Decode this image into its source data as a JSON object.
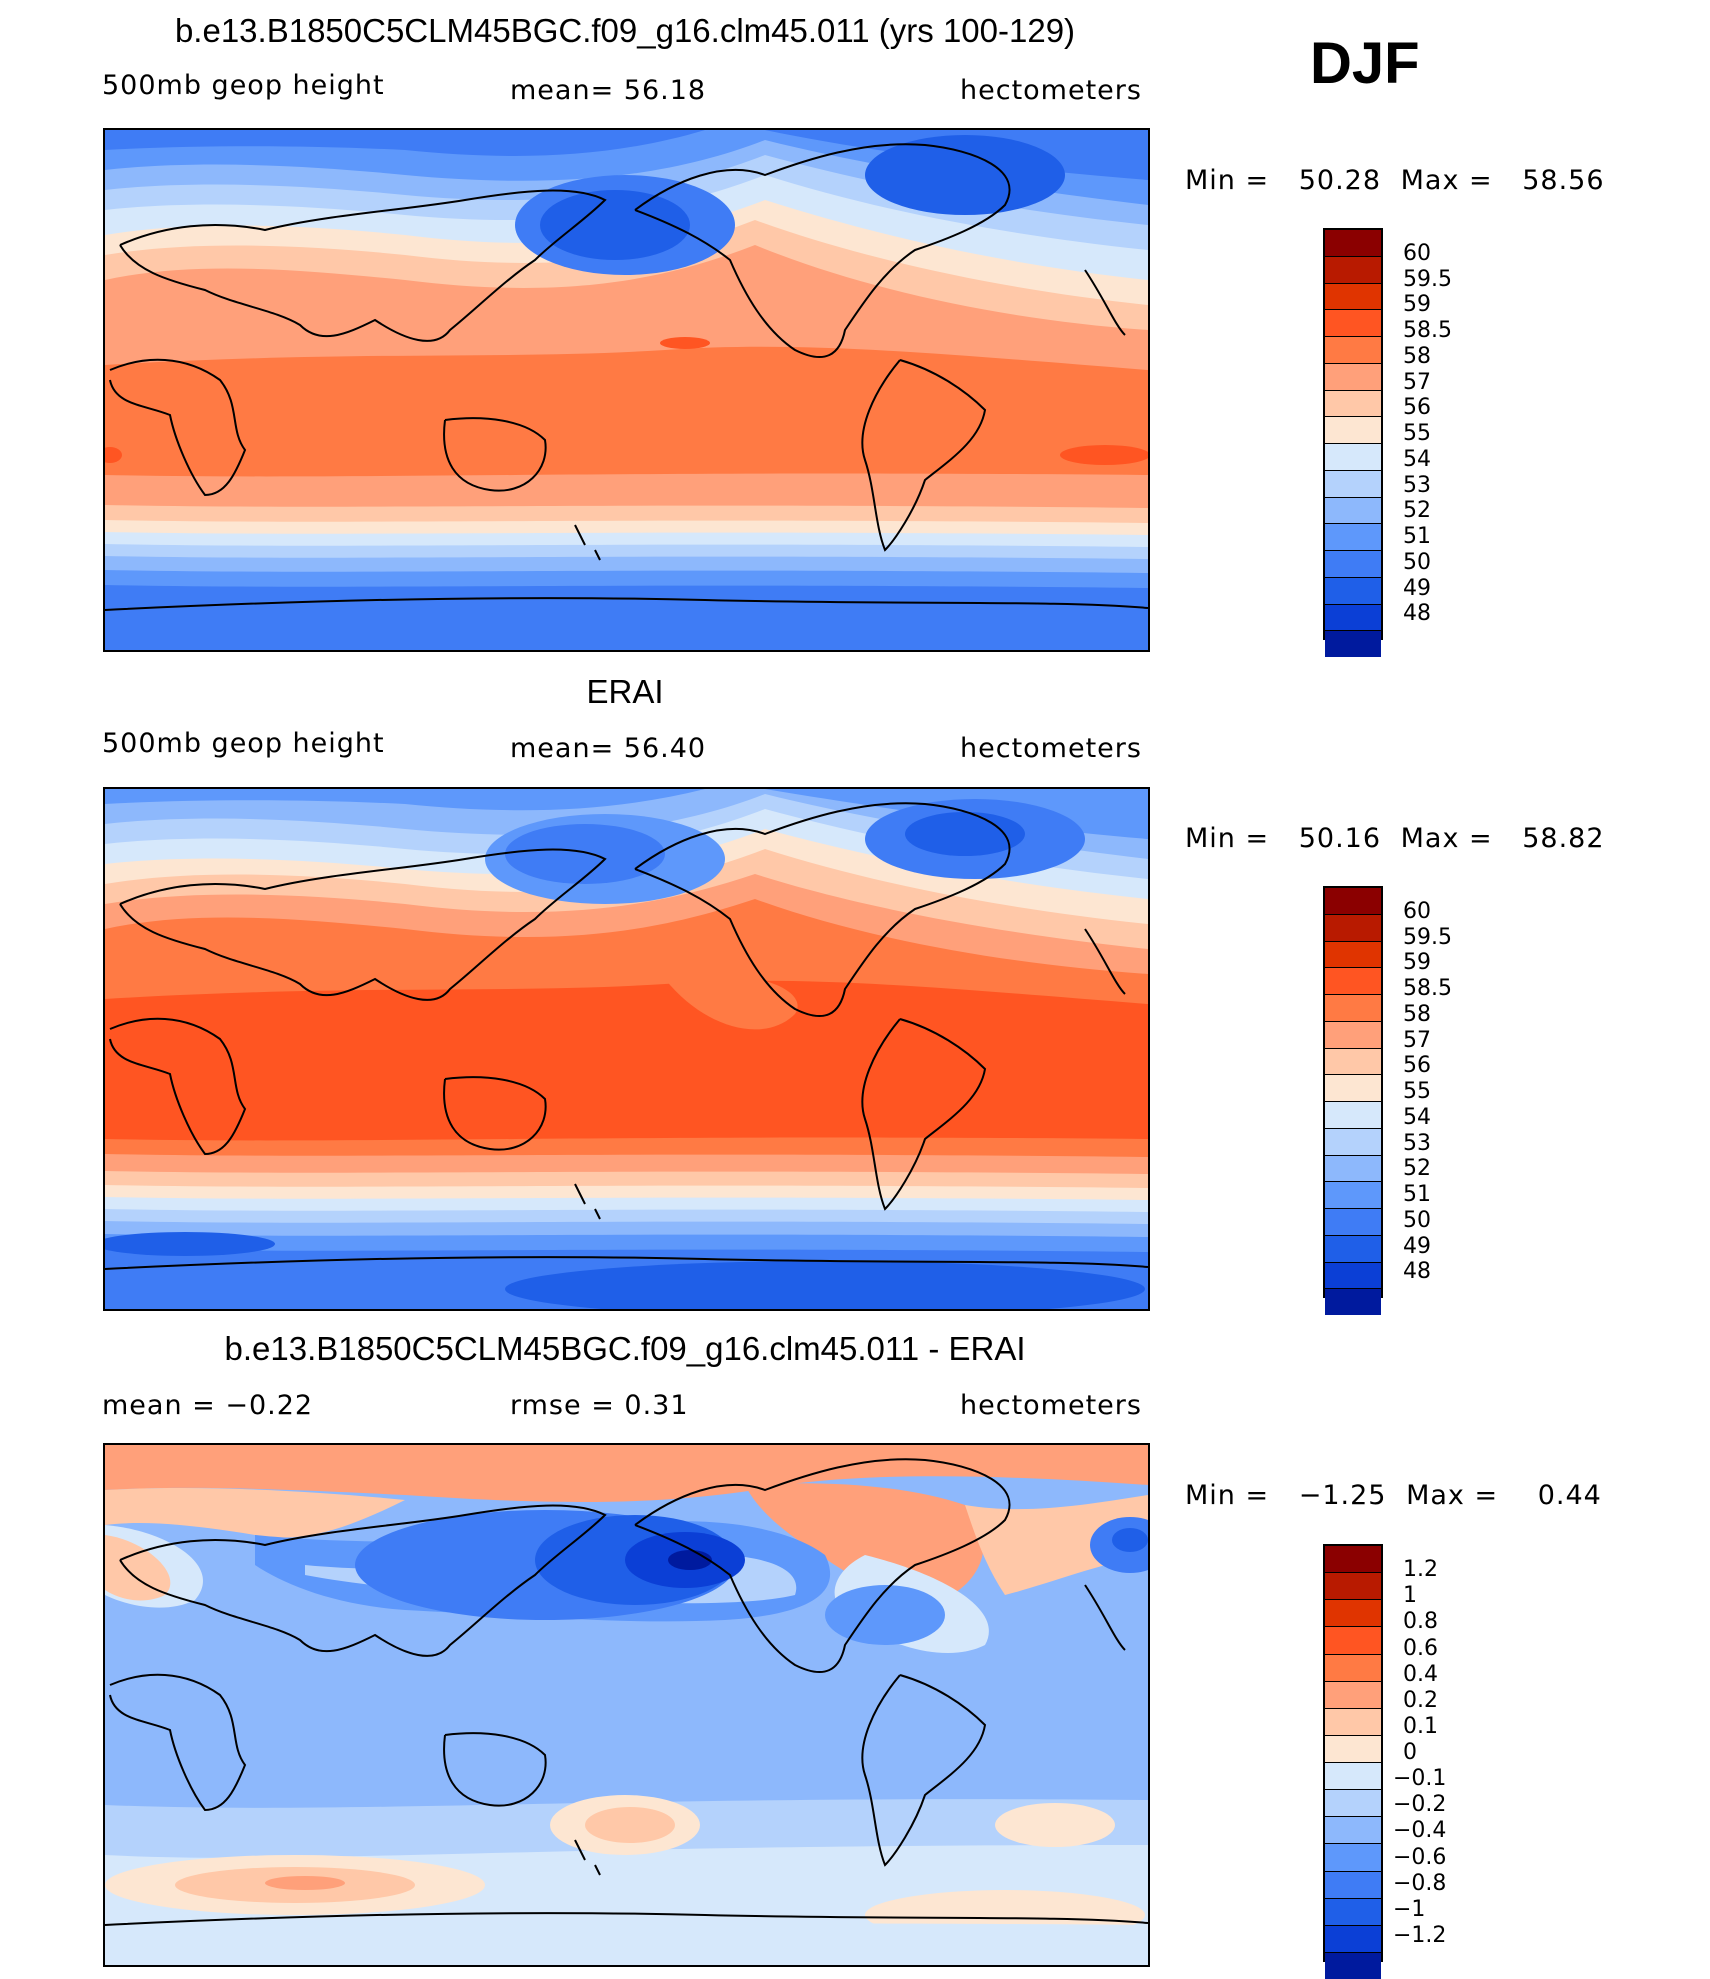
{
  "season": "DJF",
  "coast_color": "#000000",
  "panels": [
    {
      "title": "b.e13.B1850C5CLM45BGC.f09_g16.clm45.011 (yrs 100-129)",
      "left_label": "500mb geop height",
      "center_label": "mean=  56.18",
      "right_label": "hectometers",
      "min_label": "Min =",
      "min_value": "50.28",
      "max_label": "Max =",
      "max_value": "58.56",
      "colorbar_labels": [
        "60",
        "59.5",
        "59",
        "58.5",
        "58",
        "57",
        "56",
        "55",
        "54",
        "53",
        "52",
        "51",
        "50",
        "49",
        "48"
      ],
      "colors": [
        "#8b0000",
        "#b81a00",
        "#e03400",
        "#ff5522",
        "#ff7a44",
        "#ffa07a",
        "#ffc8a8",
        "#fde6d2",
        "#d6e8fb",
        "#b4d2fc",
        "#8db8fc",
        "#5e98fb",
        "#3f7cf5",
        "#1f5fe8",
        "#0b3fd6",
        "#001a9e"
      ]
    },
    {
      "title": "ERAI",
      "left_label": "500mb geop height",
      "center_label": "mean=  56.40",
      "right_label": "hectometers",
      "min_label": "Min =",
      "min_value": "50.16",
      "max_label": "Max =",
      "max_value": "58.82",
      "colorbar_labels": [
        "60",
        "59.5",
        "59",
        "58.5",
        "58",
        "57",
        "56",
        "55",
        "54",
        "53",
        "52",
        "51",
        "50",
        "49",
        "48"
      ],
      "colors": [
        "#8b0000",
        "#b81a00",
        "#e03400",
        "#ff5522",
        "#ff7a44",
        "#ffa07a",
        "#ffc8a8",
        "#fde6d2",
        "#d6e8fb",
        "#b4d2fc",
        "#8db8fc",
        "#5e98fb",
        "#3f7cf5",
        "#1f5fe8",
        "#0b3fd6",
        "#001a9e"
      ]
    },
    {
      "title": "b.e13.B1850C5CLM45BGC.f09_g16.clm45.011 - ERAI",
      "left_label": "mean =  −0.22",
      "center_label": "rmse =   0.31",
      "right_label": "hectometers",
      "min_label": "Min =",
      "min_value": "−1.25",
      "max_label": "Max =",
      "max_value": "0.44",
      "colorbar_labels": [
        "1.2",
        "1",
        "0.8",
        "0.6",
        "0.4",
        "0.2",
        "0.1",
        "0",
        "−0.1",
        "−0.2",
        "−0.4",
        "−0.6",
        "−0.8",
        "−1",
        "−1.2"
      ],
      "colors": [
        "#8b0000",
        "#b81a00",
        "#e03400",
        "#ff5522",
        "#ff7a44",
        "#ffa07a",
        "#ffc8a8",
        "#fde6d2",
        "#d6e8fb",
        "#b4d2fc",
        "#8db8fc",
        "#5e98fb",
        "#3f7cf5",
        "#1f5fe8",
        "#0b3fd6",
        "#001a9e"
      ]
    }
  ]
}
